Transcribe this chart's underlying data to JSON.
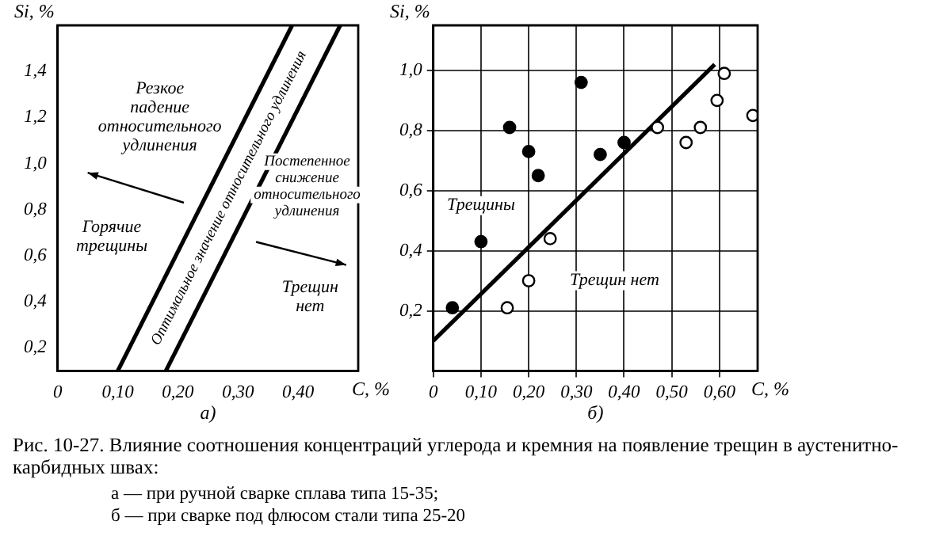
{
  "chart_data": [
    {
      "type": "line",
      "title": "а)",
      "xlabel": "C, %",
      "ylabel": "Si, %",
      "xlim": [
        0,
        0.5
      ],
      "ylim": [
        0.1,
        1.6
      ],
      "xticks": [
        {
          "value": 0,
          "label": "0"
        },
        {
          "value": 0.1,
          "label": "0,10"
        },
        {
          "value": 0.2,
          "label": "0,20"
        },
        {
          "value": 0.3,
          "label": "0,30"
        },
        {
          "value": 0.4,
          "label": "0,40"
        }
      ],
      "yticks": [
        {
          "value": 0.2,
          "label": "0,2"
        },
        {
          "value": 0.4,
          "label": "0,4"
        },
        {
          "value": 0.6,
          "label": "0,6"
        },
        {
          "value": 0.8,
          "label": "0,8"
        },
        {
          "value": 1.0,
          "label": "1,0"
        },
        {
          "value": 1.2,
          "label": "1,2"
        },
        {
          "value": 1.4,
          "label": "1,4"
        }
      ],
      "series": [
        {
          "type": "line",
          "color": "#000000",
          "x": [
            0.1,
            0.39
          ],
          "values": [
            0.1,
            1.6
          ]
        },
        {
          "type": "line",
          "color": "#000000",
          "x": [
            0.18,
            0.47
          ],
          "values": [
            0.1,
            1.6
          ]
        }
      ],
      "annotations": [
        "Резкое падение относительного удлинения",
        "Горячие трещины",
        "Постепенное снижение относительного удлинения",
        "Трещин нет",
        "Оптимальное значение относительного удлинения"
      ]
    },
    {
      "type": "scatter",
      "title": "б)",
      "xlabel": "C, %",
      "ylabel": "Si, %",
      "xlim": [
        0,
        0.68
      ],
      "ylim": [
        0,
        1.15
      ],
      "grid": true,
      "marker": "circle",
      "xticks": [
        {
          "value": 0,
          "label": "0"
        },
        {
          "value": 0.1,
          "label": "0,10"
        },
        {
          "value": 0.2,
          "label": "0,20"
        },
        {
          "value": 0.3,
          "label": "0,30"
        },
        {
          "value": 0.4,
          "label": "0,40"
        },
        {
          "value": 0.5,
          "label": "0,50"
        },
        {
          "value": 0.6,
          "label": "0,60"
        }
      ],
      "yticks": [
        {
          "value": 0.2,
          "label": "0,2"
        },
        {
          "value": 0.4,
          "label": "0,4"
        },
        {
          "value": 0.6,
          "label": "0,6"
        },
        {
          "value": 0.8,
          "label": "0,8"
        },
        {
          "value": 1.0,
          "label": "1,0"
        }
      ],
      "series": [
        {
          "type": "scatter",
          "color": "#000000",
          "x": [
            0.04,
            0.1,
            0.16,
            0.2,
            0.22,
            0.31,
            0.35,
            0.4
          ],
          "values": [
            0.21,
            0.43,
            0.81,
            0.73,
            0.65,
            0.96,
            0.72,
            0.76
          ]
        },
        {
          "type": "scatter",
          "color": "#ffffff",
          "x": [
            0.155,
            0.2,
            0.245,
            0.47,
            0.53,
            0.56,
            0.595,
            0.61,
            0.67
          ],
          "values": [
            0.21,
            0.3,
            0.44,
            0.81,
            0.76,
            0.81,
            0.9,
            0.99,
            0.85
          ]
        },
        {
          "type": "line",
          "color": "#000000",
          "marker": "none",
          "x": [
            0,
            0.59
          ],
          "values": [
            0.1,
            1.02
          ]
        }
      ],
      "annotations": [
        "Трещины",
        "Трещин нет"
      ]
    },
    {
      "type": "other",
      "title": "Рис. 10-27. Влияние соотношения концентраций углерода и кремния на появление трещин в аустенитно-карбидных швах:",
      "annotations": [
        "а — при ручной сварке сплава типа 15-35;",
        "б — при сварке под флюсом стали типа 25-20"
      ]
    }
  ]
}
